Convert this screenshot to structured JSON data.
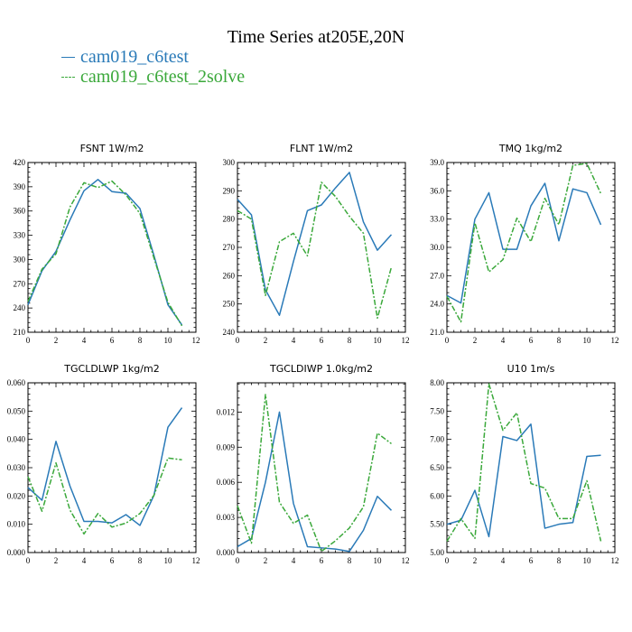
{
  "title": "Time Series at205E,20N",
  "legend": [
    {
      "label": "cam019_c6test",
      "color": "#2a7ab8",
      "dash": false
    },
    {
      "label": "cam019_c6test_2solve",
      "color": "#3aa83a",
      "dash": true
    }
  ],
  "chart_data": [
    {
      "type": "line",
      "title": "FSNT   1W/m2",
      "x": [
        0,
        1,
        2,
        3,
        4,
        5,
        6,
        7,
        8,
        9,
        10,
        11
      ],
      "xlim": [
        0,
        12
      ],
      "xticks": [
        0,
        2,
        4,
        6,
        8,
        10,
        12
      ],
      "ylim": [
        210,
        420
      ],
      "yticks": [
        210,
        240,
        270,
        300,
        330,
        360,
        390,
        420
      ],
      "ytick_labels": [
        "210",
        "240",
        "270",
        "300",
        "330",
        "360",
        "390",
        "420"
      ],
      "series": [
        {
          "name": "cam019_c6test",
          "values": [
            244,
            286,
            310,
            349,
            385,
            399,
            384,
            382,
            363,
            305,
            244,
            219
          ]
        },
        {
          "name": "cam019_c6test_2solve",
          "values": [
            248,
            288,
            307,
            365,
            395,
            389,
            397,
            380,
            357,
            302,
            247,
            218
          ]
        }
      ]
    },
    {
      "type": "line",
      "title": "FLNT   1W/m2",
      "x": [
        0,
        1,
        2,
        3,
        4,
        5,
        6,
        7,
        8,
        9,
        10,
        11
      ],
      "xlim": [
        0,
        12
      ],
      "xticks": [
        0,
        2,
        4,
        6,
        8,
        10,
        12
      ],
      "ylim": [
        240,
        300
      ],
      "yticks": [
        240,
        250,
        260,
        270,
        280,
        290,
        300
      ],
      "ytick_labels": [
        "240",
        "250",
        "260",
        "270",
        "280",
        "290",
        "300"
      ],
      "series": [
        {
          "name": "cam019_c6test",
          "values": [
            287,
            281.5,
            255,
            246,
            265,
            283,
            285,
            291,
            296.5,
            279,
            269,
            274.5
          ]
        },
        {
          "name": "cam019_c6test_2solve",
          "values": [
            283,
            280,
            253,
            272,
            275,
            267,
            293,
            288,
            281,
            275,
            245,
            263
          ]
        }
      ]
    },
    {
      "type": "line",
      "title": "TMQ   1kg/m2",
      "x": [
        0,
        1,
        2,
        3,
        4,
        5,
        6,
        7,
        8,
        9,
        10,
        11
      ],
      "xlim": [
        0,
        12
      ],
      "xticks": [
        0,
        2,
        4,
        6,
        8,
        10,
        12
      ],
      "ylim": [
        21,
        39
      ],
      "yticks": [
        21,
        24,
        27,
        30,
        33,
        36,
        39
      ],
      "ytick_labels": [
        "21.0",
        "24.0",
        "27.0",
        "30.0",
        "33.0",
        "36.0",
        "39.0"
      ],
      "series": [
        {
          "name": "cam019_c6test",
          "values": [
            24.9,
            24.1,
            33,
            35.8,
            29.8,
            29.8,
            34.4,
            36.8,
            30.7,
            36.2,
            35.8,
            32.4
          ]
        },
        {
          "name": "cam019_c6test_2solve",
          "values": [
            24.8,
            22.1,
            32.6,
            27.4,
            28.7,
            33.1,
            30.6,
            35.2,
            32.4,
            38.7,
            38.9,
            35.7
          ]
        }
      ]
    },
    {
      "type": "line",
      "title": "TGCLDLWP   1kg/m2",
      "x": [
        0,
        1,
        2,
        3,
        4,
        5,
        6,
        7,
        8,
        9,
        10,
        11
      ],
      "xlim": [
        0,
        12
      ],
      "xticks": [
        0,
        2,
        4,
        6,
        8,
        10,
        12
      ],
      "ylim": [
        0,
        0.06
      ],
      "yticks": [
        0,
        0.01,
        0.02,
        0.03,
        0.04,
        0.05,
        0.06
      ],
      "ytick_labels": [
        "0.000",
        "0.010",
        "0.020",
        "0.030",
        "0.040",
        "0.050",
        "0.060"
      ],
      "series": [
        {
          "name": "cam019_c6test",
          "values": [
            0.023,
            0.0185,
            0.0393,
            0.0235,
            0.011,
            0.011,
            0.0105,
            0.0134,
            0.0096,
            0.0202,
            0.0443,
            0.0512
          ]
        },
        {
          "name": "cam019_c6test_2solve",
          "values": [
            0.0268,
            0.0146,
            0.0317,
            0.015,
            0.0066,
            0.0138,
            0.009,
            0.0104,
            0.0138,
            0.0202,
            0.0334,
            0.0328
          ]
        }
      ]
    },
    {
      "type": "line",
      "title": "TGCLDIWP   1.0kg/m2",
      "x": [
        0,
        1,
        2,
        3,
        4,
        5,
        6,
        7,
        8,
        9,
        10,
        11
      ],
      "xlim": [
        0,
        12
      ],
      "xticks": [
        0,
        2,
        4,
        6,
        8,
        10,
        12
      ],
      "ylim": [
        0,
        0.0145
      ],
      "yticks": [
        0,
        0.003,
        0.006,
        0.009,
        0.012
      ],
      "ytick_labels": [
        "0.000",
        "0.003",
        "0.006",
        "0.009",
        "0.012"
      ],
      "series": [
        {
          "name": "cam019_c6test",
          "values": [
            0.0005,
            0.0012,
            0.006,
            0.012,
            0.0042,
            0.0005,
            0.0004,
            0.0003,
            0.0001,
            0.0019,
            0.0048,
            0.0036
          ]
        },
        {
          "name": "cam019_c6test_2solve",
          "values": [
            0.004,
            0.0008,
            0.0135,
            0.0043,
            0.0025,
            0.0032,
            0.0001,
            0.001,
            0.0021,
            0.0039,
            0.0102,
            0.0093
          ]
        }
      ]
    },
    {
      "type": "line",
      "title": "U10   1m/s",
      "x": [
        0,
        1,
        2,
        3,
        4,
        5,
        6,
        7,
        8,
        9,
        10,
        11
      ],
      "xlim": [
        0,
        12
      ],
      "xticks": [
        0,
        2,
        4,
        6,
        8,
        10,
        12
      ],
      "ylim": [
        5,
        8
      ],
      "yticks": [
        5,
        5.5,
        6,
        6.5,
        7,
        7.5,
        8
      ],
      "ytick_labels": [
        "5.00",
        "5.50",
        "6.00",
        "6.50",
        "7.00",
        "7.50",
        "8.00"
      ],
      "series": [
        {
          "name": "cam019_c6test",
          "values": [
            5.5,
            5.57,
            6.1,
            5.28,
            7.05,
            6.98,
            7.27,
            5.43,
            5.5,
            5.53,
            6.7,
            6.72
          ]
        },
        {
          "name": "cam019_c6test_2solve",
          "values": [
            5.2,
            5.6,
            5.25,
            7.98,
            7.16,
            7.47,
            6.22,
            6.14,
            5.6,
            5.6,
            6.27,
            5.2
          ]
        }
      ]
    }
  ]
}
